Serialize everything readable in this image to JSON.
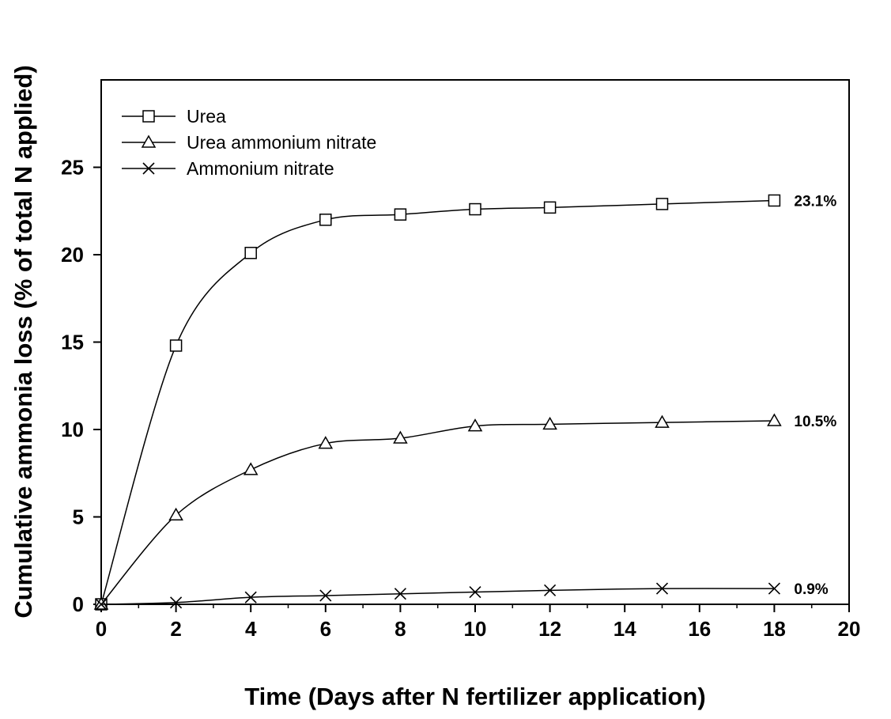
{
  "chart_data": {
    "type": "line",
    "title": "",
    "xlabel": "Time (Days after N fertilizer application)",
    "ylabel": "Cumulative ammonia loss (% of total N applied)",
    "xlim": [
      0,
      20
    ],
    "ylim": [
      0,
      30
    ],
    "xticks": [
      "0",
      "2",
      "4",
      "6",
      "8",
      "10",
      "12",
      "14",
      "16",
      "18",
      "20"
    ],
    "yticks": [
      "0",
      "5",
      "10",
      "15",
      "20",
      "25"
    ],
    "grid": false,
    "legend": "top-left",
    "series": [
      {
        "name": "Urea",
        "marker": "square",
        "x": [
          0,
          2,
          4,
          6,
          8,
          10,
          12,
          15,
          18
        ],
        "y": [
          0,
          14.8,
          20.1,
          22.0,
          22.3,
          22.6,
          22.7,
          22.9,
          23.1
        ],
        "end_label": "23.1%"
      },
      {
        "name": "Urea ammonium nitrate",
        "marker": "triangle",
        "x": [
          0,
          2,
          4,
          6,
          8,
          10,
          12,
          15,
          18
        ],
        "y": [
          0,
          5.1,
          7.7,
          9.2,
          9.5,
          10.2,
          10.3,
          10.4,
          10.5
        ],
        "end_label": "10.5%"
      },
      {
        "name": "Ammonium nitrate",
        "marker": "x",
        "x": [
          0,
          2,
          4,
          6,
          8,
          10,
          12,
          15,
          18
        ],
        "y": [
          0,
          0.1,
          0.4,
          0.5,
          0.6,
          0.7,
          0.8,
          0.9,
          0.9
        ],
        "end_label": "0.9%"
      }
    ]
  }
}
